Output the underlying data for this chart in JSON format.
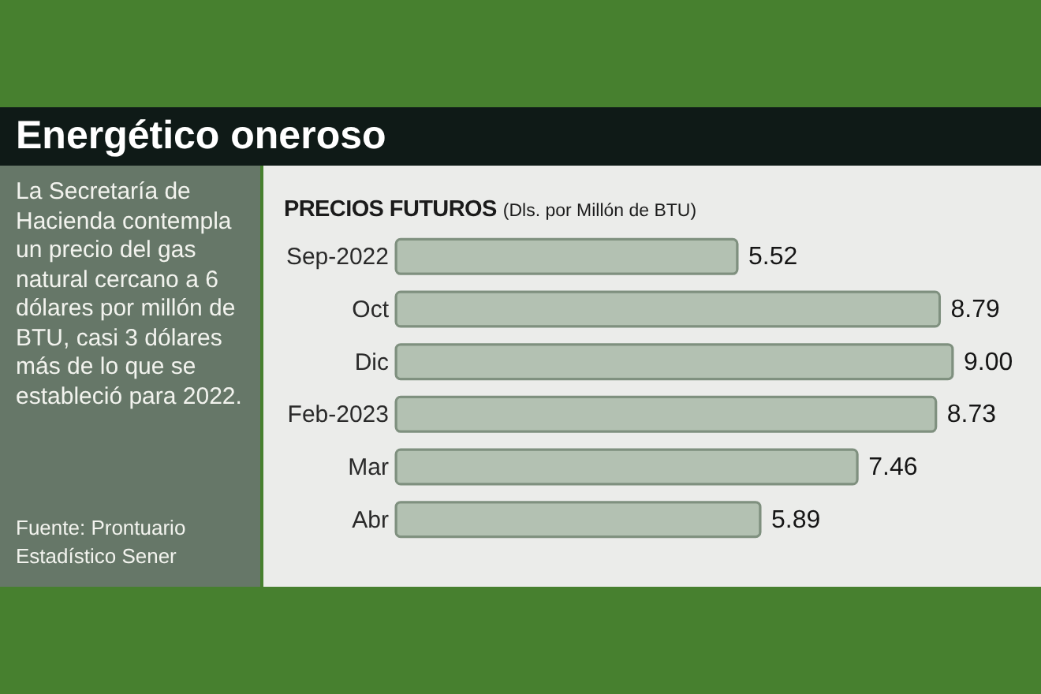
{
  "chart_data": {
    "type": "bar",
    "orientation": "horizontal",
    "title": "Energético oneroso",
    "subtitle": "PRECIOS FUTUROS",
    "xlabel": "(Dls. por Millón de BTU)",
    "annotations": [
      "La Secretaría de Hacienda contempla un precio del gas natural cercano a 6 dólares por millón de BTU, casi 3 dólares más de lo que se estableció para 2022.",
      "Fuente: Prontuario Estadístico Sener"
    ],
    "categories": [
      "Sep-2022",
      "Oct",
      "Dic",
      "Feb-2023",
      "Mar",
      "Abr"
    ],
    "values": [
      5.52,
      8.79,
      9.0,
      8.73,
      7.46,
      5.89
    ],
    "value_labels": [
      "5.52",
      "8.79",
      "9.00",
      "8.73",
      "7.46",
      "5.89"
    ],
    "color": "#b3c1b2",
    "tick_labels": "y"
  }
}
